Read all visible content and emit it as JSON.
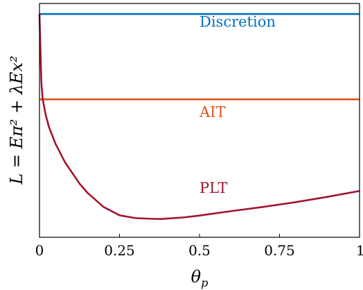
{
  "chart_data": {
    "type": "line",
    "title": "",
    "xlabel": "θ",
    "xlabel_sub": "p",
    "ylabel": "L = Eπ² + λEx²",
    "xlim": [
      0,
      1
    ],
    "ylim": [
      0,
      1
    ],
    "x_ticks": [
      0,
      0.25,
      0.5,
      0.75,
      1
    ],
    "x_tick_labels": [
      "0",
      "0.25",
      "0.5",
      "0.75",
      "1"
    ],
    "y_ticks": [],
    "grid": false,
    "legend": "none",
    "annotations": [
      {
        "text": "Discretion",
        "series": "Discretion",
        "x": 0.5,
        "y": 0.9,
        "color": "#0072BD"
      },
      {
        "text": "AIT",
        "series": "AIT",
        "x": 0.5,
        "y": 0.515,
        "color": "#D95319"
      },
      {
        "text": "PLT",
        "series": "PLT",
        "x": 0.5,
        "y": 0.19,
        "color": "#A2142F"
      }
    ],
    "series": [
      {
        "name": "Discretion",
        "color": "#0072BD",
        "x": [
          0,
          1
        ],
        "y": [
          0.955,
          0.955
        ]
      },
      {
        "name": "AIT",
        "color": "#D95319",
        "x": [
          0,
          1
        ],
        "y": [
          0.59,
          0.59
        ]
      },
      {
        "name": "PLT",
        "color": "#A2142F",
        "x": [
          0.0,
          0.003,
          0.006,
          0.01,
          0.02,
          0.03,
          0.05,
          0.08,
          0.1,
          0.125,
          0.15,
          0.2,
          0.25,
          0.3,
          0.35,
          0.38,
          0.45,
          0.5,
          0.6,
          0.7,
          0.8,
          0.9,
          1.0
        ],
        "y": [
          0.955,
          0.8,
          0.66,
          0.59,
          0.52,
          0.47,
          0.4,
          0.32,
          0.28,
          0.23,
          0.19,
          0.13,
          0.094,
          0.082,
          0.079,
          0.078,
          0.085,
          0.093,
          0.112,
          0.13,
          0.15,
          0.173,
          0.198
        ]
      }
    ]
  }
}
